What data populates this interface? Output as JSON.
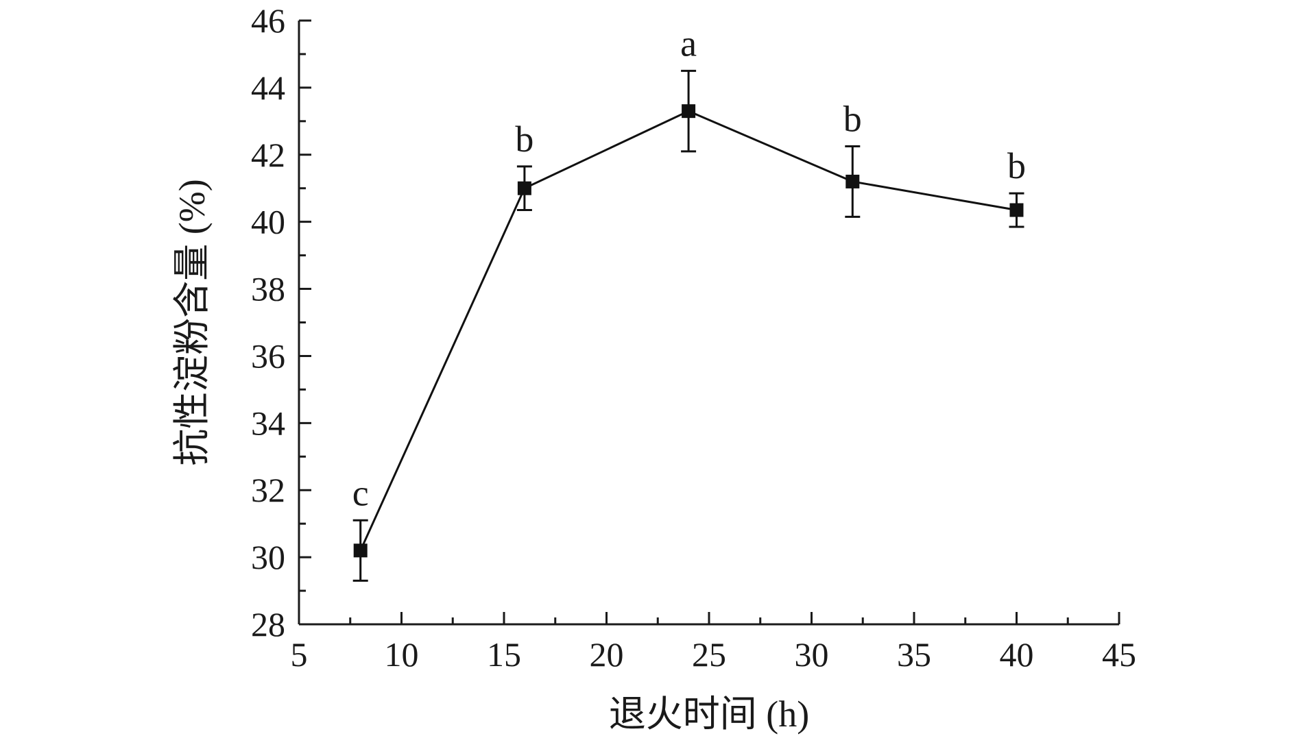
{
  "chart_data": {
    "type": "line",
    "xlabel": "退火时间 (h)",
    "ylabel": "抗性淀粉含量 (%)",
    "xlim": [
      5,
      45
    ],
    "ylim": [
      28,
      46
    ],
    "x_major_ticks": [
      5,
      10,
      15,
      20,
      25,
      30,
      35,
      40,
      45
    ],
    "x_minor_ticks": [
      7.5,
      12.5,
      17.5,
      22.5,
      27.5,
      32.5,
      37.5,
      42.5
    ],
    "y_major_ticks": [
      28,
      30,
      32,
      34,
      36,
      38,
      40,
      42,
      44,
      46
    ],
    "y_minor_ticks": [
      29,
      31,
      33,
      35,
      37,
      39,
      41,
      43,
      45
    ],
    "grid": false,
    "series": [
      {
        "color": "#111111",
        "marker": "square",
        "points": [
          {
            "x": 8,
            "y": 30.2,
            "err": 0.9,
            "label": "c"
          },
          {
            "x": 16,
            "y": 41.0,
            "err": 0.65,
            "label": "b"
          },
          {
            "x": 24,
            "y": 43.3,
            "err": 1.2,
            "label": "a"
          },
          {
            "x": 32,
            "y": 41.2,
            "err": 1.05,
            "label": "b"
          },
          {
            "x": 40,
            "y": 40.35,
            "err": 0.5,
            "label": "b"
          }
        ]
      }
    ]
  }
}
